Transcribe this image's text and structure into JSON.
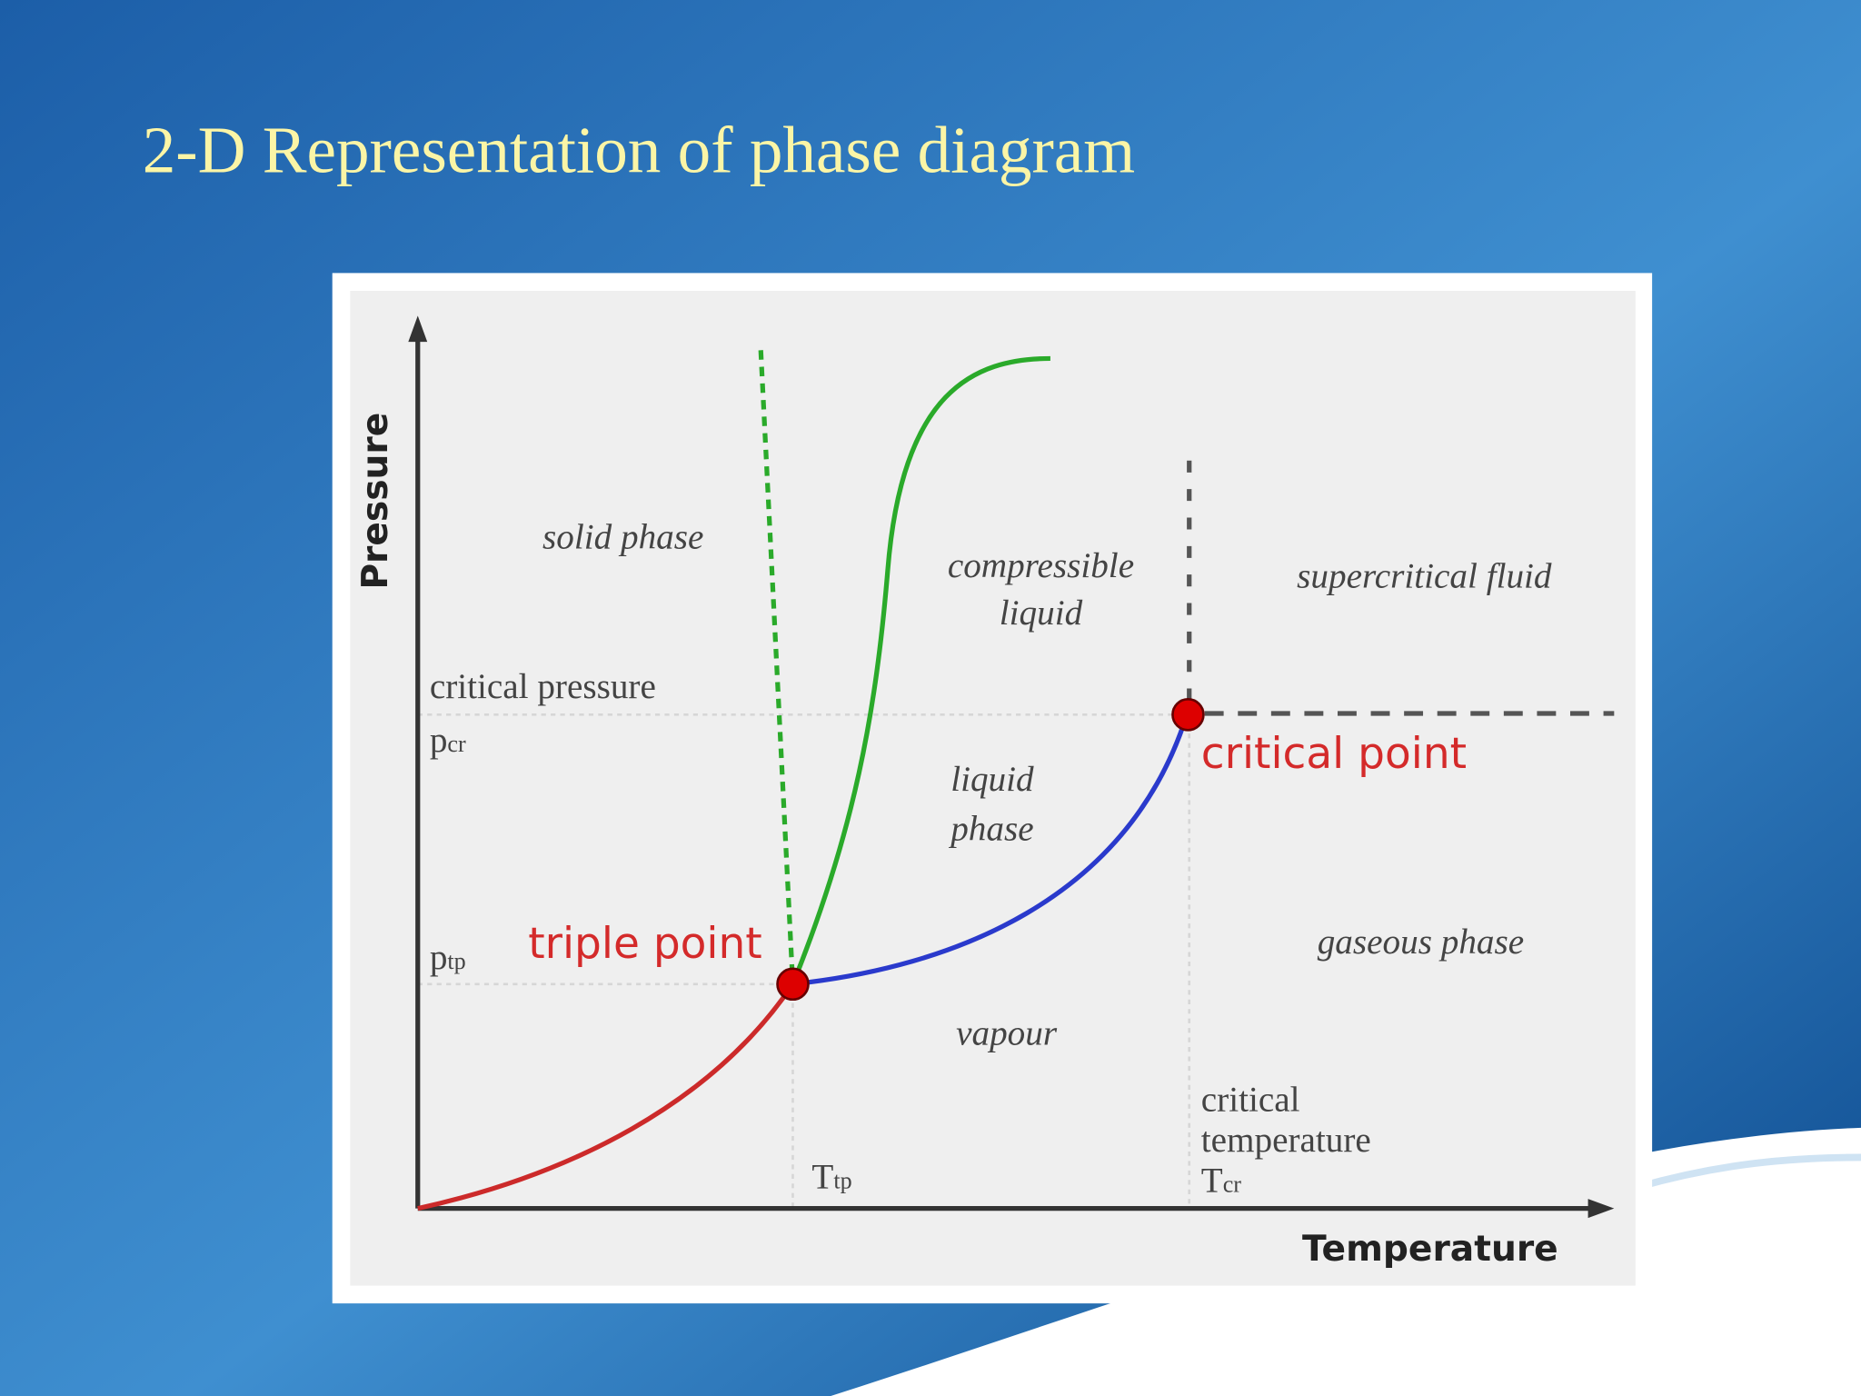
{
  "title": "2-D Representation of phase diagram",
  "diagram": {
    "axes": {
      "x": "Temperature",
      "y": "Pressure"
    },
    "regions": {
      "solid": "solid phase",
      "compressible": [
        "compressible",
        "liquid"
      ],
      "supercritical": "supercritical fluid",
      "liquid": [
        "liquid",
        "phase"
      ],
      "gaseous": "gaseous phase",
      "vapour": "vapour"
    },
    "points": {
      "critical": "critical point",
      "triple": "triple point"
    },
    "pressure_labels": {
      "critical_caption": "critical pressure",
      "critical": {
        "main": "p",
        "sub": "cr"
      },
      "triple": {
        "main": "p",
        "sub": "tp"
      }
    },
    "temperature_labels": {
      "critical_caption": [
        "critical",
        "temperature"
      ],
      "critical": {
        "main": "T",
        "sub": "cr"
      },
      "triple": {
        "main": "T",
        "sub": "tp"
      }
    }
  }
}
